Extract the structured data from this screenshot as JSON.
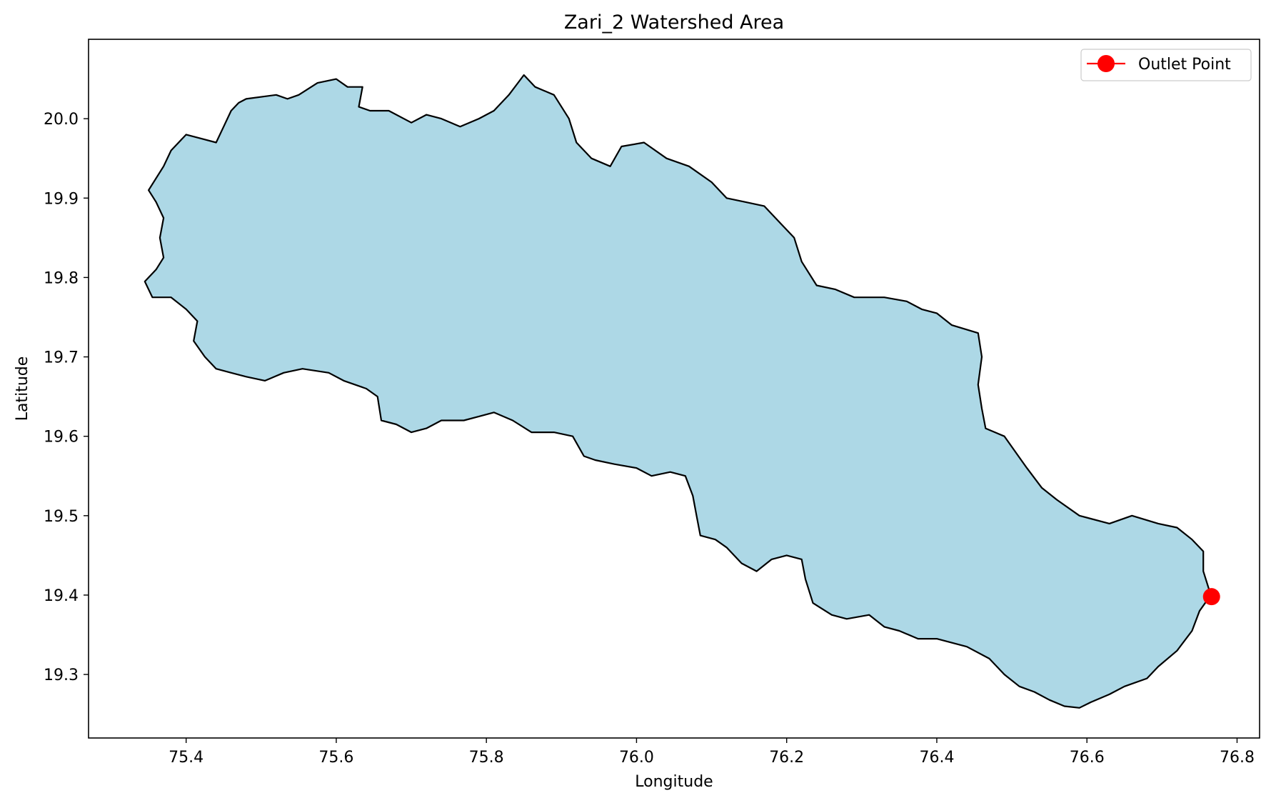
{
  "chart_data": {
    "type": "map",
    "title": "Zari_2 Watershed Area",
    "xlabel": "Longitude",
    "ylabel": "Latitude",
    "xlim": [
      75.27,
      76.83
    ],
    "ylim": [
      19.22,
      20.1
    ],
    "xticks": [
      "75.4",
      "75.6",
      "75.8",
      "76.0",
      "76.2",
      "76.4",
      "76.6",
      "76.8"
    ],
    "yticks": [
      "19.3",
      "19.4",
      "19.5",
      "19.6",
      "19.7",
      "19.8",
      "19.9",
      "20.0"
    ],
    "grid": false,
    "legend": {
      "placement": "top-right",
      "entries": [
        {
          "label": "Outlet Point",
          "color": "#ff0000",
          "marker": "circle"
        }
      ]
    },
    "watershed": {
      "fill_color": "#add8e6",
      "edge_color": "#000000",
      "boundary": [
        [
          75.35,
          19.91
        ],
        [
          75.37,
          19.94
        ],
        [
          75.38,
          19.96
        ],
        [
          75.4,
          19.98
        ],
        [
          75.42,
          19.975
        ],
        [
          75.44,
          19.97
        ],
        [
          75.45,
          19.99
        ],
        [
          75.46,
          20.01
        ],
        [
          75.47,
          20.02
        ],
        [
          75.48,
          20.025
        ],
        [
          75.52,
          20.03
        ],
        [
          75.535,
          20.025
        ],
        [
          75.55,
          20.03
        ],
        [
          75.575,
          20.045
        ],
        [
          75.6,
          20.05
        ],
        [
          75.615,
          20.04
        ],
        [
          75.635,
          20.04
        ],
        [
          75.63,
          20.015
        ],
        [
          75.645,
          20.01
        ],
        [
          75.67,
          20.01
        ],
        [
          75.7,
          19.995
        ],
        [
          75.72,
          20.005
        ],
        [
          75.74,
          20.0
        ],
        [
          75.765,
          19.99
        ],
        [
          75.79,
          20.0
        ],
        [
          75.81,
          20.01
        ],
        [
          75.83,
          20.03
        ],
        [
          75.85,
          20.055
        ],
        [
          75.865,
          20.04
        ],
        [
          75.89,
          20.03
        ],
        [
          75.91,
          20.0
        ],
        [
          75.92,
          19.97
        ],
        [
          75.94,
          19.95
        ],
        [
          75.965,
          19.94
        ],
        [
          75.98,
          19.965
        ],
        [
          76.01,
          19.97
        ],
        [
          76.04,
          19.95
        ],
        [
          76.07,
          19.94
        ],
        [
          76.1,
          19.92
        ],
        [
          76.12,
          19.9
        ],
        [
          76.145,
          19.895
        ],
        [
          76.17,
          19.89
        ],
        [
          76.19,
          19.87
        ],
        [
          76.21,
          19.85
        ],
        [
          76.22,
          19.82
        ],
        [
          76.24,
          19.79
        ],
        [
          76.265,
          19.785
        ],
        [
          76.29,
          19.775
        ],
        [
          76.33,
          19.775
        ],
        [
          76.36,
          19.77
        ],
        [
          76.38,
          19.76
        ],
        [
          76.4,
          19.755
        ],
        [
          76.42,
          19.74
        ],
        [
          76.455,
          19.73
        ],
        [
          76.46,
          19.7
        ],
        [
          76.455,
          19.665
        ],
        [
          76.46,
          19.635
        ],
        [
          76.465,
          19.61
        ],
        [
          76.49,
          19.6
        ],
        [
          76.505,
          19.58
        ],
        [
          76.52,
          19.56
        ],
        [
          76.54,
          19.535
        ],
        [
          76.56,
          19.52
        ],
        [
          76.59,
          19.5
        ],
        [
          76.63,
          19.49
        ],
        [
          76.66,
          19.5
        ],
        [
          76.695,
          19.49
        ],
        [
          76.72,
          19.485
        ],
        [
          76.74,
          19.47
        ],
        [
          76.755,
          19.455
        ],
        [
          76.755,
          19.43
        ],
        [
          76.765,
          19.4
        ],
        [
          76.75,
          19.38
        ],
        [
          76.74,
          19.355
        ],
        [
          76.72,
          19.33
        ],
        [
          76.695,
          19.31
        ],
        [
          76.68,
          19.295
        ],
        [
          76.65,
          19.285
        ],
        [
          76.63,
          19.275
        ],
        [
          76.605,
          19.265
        ],
        [
          76.59,
          19.258
        ],
        [
          76.57,
          19.26
        ],
        [
          76.55,
          19.268
        ],
        [
          76.53,
          19.278
        ],
        [
          76.51,
          19.285
        ],
        [
          76.49,
          19.3
        ],
        [
          76.47,
          19.32
        ],
        [
          76.44,
          19.335
        ],
        [
          76.4,
          19.345
        ],
        [
          76.375,
          19.345
        ],
        [
          76.35,
          19.355
        ],
        [
          76.33,
          19.36
        ],
        [
          76.31,
          19.375
        ],
        [
          76.28,
          19.37
        ],
        [
          76.26,
          19.375
        ],
        [
          76.235,
          19.39
        ],
        [
          76.225,
          19.42
        ],
        [
          76.22,
          19.445
        ],
        [
          76.2,
          19.45
        ],
        [
          76.18,
          19.445
        ],
        [
          76.16,
          19.43
        ],
        [
          76.14,
          19.44
        ],
        [
          76.12,
          19.46
        ],
        [
          76.105,
          19.47
        ],
        [
          76.085,
          19.475
        ],
        [
          76.08,
          19.5
        ],
        [
          76.075,
          19.525
        ],
        [
          76.065,
          19.55
        ],
        [
          76.045,
          19.555
        ],
        [
          76.02,
          19.55
        ],
        [
          76.0,
          19.56
        ],
        [
          75.97,
          19.565
        ],
        [
          75.945,
          19.57
        ],
        [
          75.93,
          19.575
        ],
        [
          75.915,
          19.6
        ],
        [
          75.89,
          19.605
        ],
        [
          75.86,
          19.605
        ],
        [
          75.835,
          19.62
        ],
        [
          75.81,
          19.63
        ],
        [
          75.79,
          19.625
        ],
        [
          75.77,
          19.62
        ],
        [
          75.74,
          19.62
        ],
        [
          75.72,
          19.61
        ],
        [
          75.7,
          19.605
        ],
        [
          75.68,
          19.615
        ],
        [
          75.66,
          19.62
        ],
        [
          75.655,
          19.65
        ],
        [
          75.64,
          19.66
        ],
        [
          75.61,
          19.67
        ],
        [
          75.59,
          19.68
        ],
        [
          75.555,
          19.685
        ],
        [
          75.53,
          19.68
        ],
        [
          75.505,
          19.67
        ],
        [
          75.48,
          19.675
        ],
        [
          75.46,
          19.68
        ],
        [
          75.44,
          19.685
        ],
        [
          75.425,
          19.7
        ],
        [
          75.41,
          19.72
        ],
        [
          75.415,
          19.745
        ],
        [
          75.4,
          19.76
        ],
        [
          75.38,
          19.775
        ],
        [
          75.355,
          19.775
        ],
        [
          75.345,
          19.795
        ],
        [
          75.36,
          19.81
        ],
        [
          75.37,
          19.825
        ],
        [
          75.365,
          19.85
        ],
        [
          75.37,
          19.875
        ],
        [
          75.36,
          19.895
        ]
      ]
    },
    "outlet": {
      "label": "Outlet Point",
      "lon": 76.766,
      "lat": 19.398,
      "color": "#ff0000"
    }
  }
}
